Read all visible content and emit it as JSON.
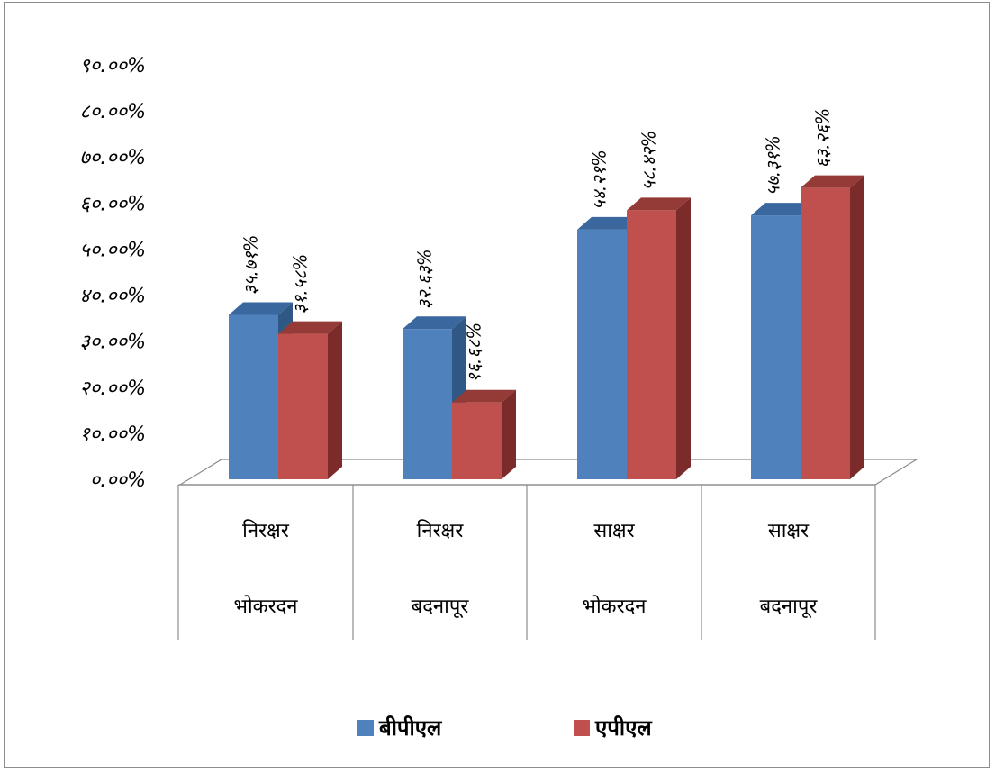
{
  "chart_data": {
    "type": "bar",
    "title": "",
    "xlabel": "",
    "ylabel": "",
    "ylim": [
      0,
      90
    ],
    "y_ticks": [
      "०.००%",
      "१०.००%",
      "२०.००%",
      "३०.००%",
      "४०.००%",
      "५०.००%",
      "६०.००%",
      "७०.००%",
      "८०.००%",
      "९०.००%"
    ],
    "categories": [
      {
        "top": "निरक्षर",
        "bottom": "भोकरदन"
      },
      {
        "top": "निरक्षर",
        "bottom": "बदनापूर"
      },
      {
        "top": "साक्षर",
        "bottom": "भोकरदन"
      },
      {
        "top": "साक्षर",
        "bottom": "बदनापूर"
      }
    ],
    "series": [
      {
        "name": "बीपीएल",
        "color": "#4f81bd",
        "side": "#2f5886",
        "top": "#3a679e",
        "values": [
          35.71,
          32.63,
          54.21,
          57.31
        ],
        "labels": [
          "३५.७१%",
          "३२.६३%",
          "५४.२१%",
          "५७.३१%"
        ]
      },
      {
        "name": "एपीएल",
        "color": "#c0504d",
        "side": "#7b2c2a",
        "top": "#943b38",
        "values": [
          31.58,
          16.68,
          58.42,
          63.26
        ],
        "labels": [
          "३१.५८%",
          "१६.६८%",
          "५८.४२%",
          "६३.२६%"
        ]
      }
    ],
    "legend_position": "bottom",
    "grid": false,
    "style": "3d-clustered-column"
  }
}
